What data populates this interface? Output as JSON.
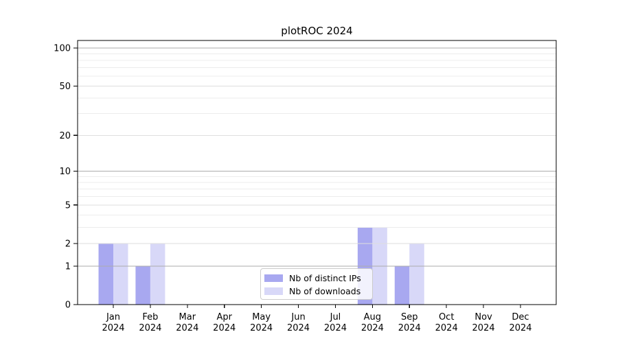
{
  "chart_data": {
    "type": "bar",
    "title": "plotROC 2024",
    "year_label": "2024",
    "categories": [
      "Jan",
      "Feb",
      "Mar",
      "Apr",
      "May",
      "Jun",
      "Jul",
      "Aug",
      "Sep",
      "Oct",
      "Nov",
      "Dec"
    ],
    "series": [
      {
        "name": "Nb of distinct IPs",
        "color": "#a8a8f0",
        "values": [
          2,
          1,
          0,
          0,
          0,
          0,
          0,
          3,
          1,
          0,
          0,
          0
        ]
      },
      {
        "name": "Nb of downloads",
        "color": "#d8d8f8",
        "values": [
          2,
          2,
          0,
          0,
          0,
          0,
          0,
          3,
          2,
          0,
          0,
          0
        ]
      }
    ],
    "y_axis": {
      "scale": "log1p",
      "ticks": [
        0,
        1,
        2,
        5,
        10,
        20,
        50,
        100
      ],
      "minor_gridlines": [
        3,
        4,
        6,
        7,
        8,
        9,
        30,
        40,
        60,
        70,
        80,
        90
      ]
    },
    "x_axis": {
      "label_line_2": "2024"
    },
    "legend": {
      "position": "inside-bottom-center"
    },
    "grid": true,
    "colors": {
      "grid_power_of_ten": "#ababab",
      "grid_major": "#dedede",
      "grid_minor": "#ececec",
      "axis_line": "#000000",
      "tick_text": "#000000"
    }
  }
}
